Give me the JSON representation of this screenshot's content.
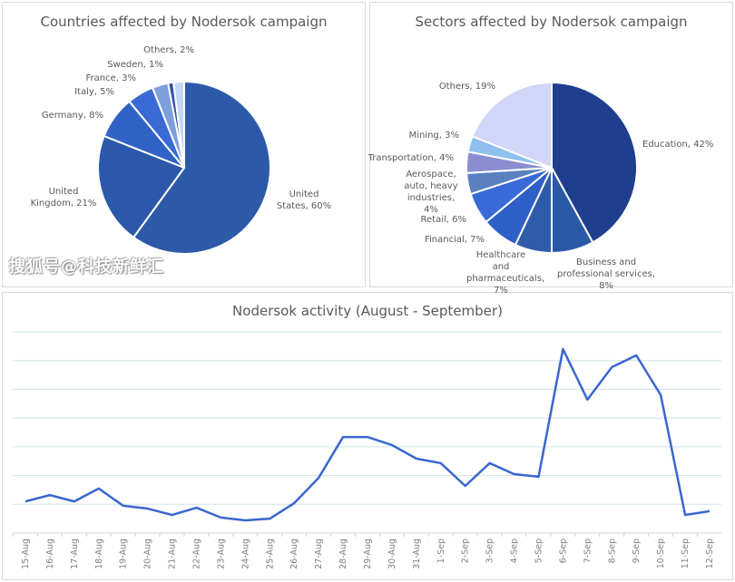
{
  "watermark": "搜狐号@科技新鲜汇",
  "chart_data": [
    {
      "type": "pie",
      "title": "Countries affected by Nodersok campaign",
      "slices": [
        {
          "label": "United States, 60%",
          "value": 60,
          "color": "#2c5aa8"
        },
        {
          "label": "United Kingdom, 21%",
          "value": 21,
          "color": "#2b58a9"
        },
        {
          "label": "Germany, 8%",
          "value": 8,
          "color": "#3163c6"
        },
        {
          "label": "Italy, 5%",
          "value": 5,
          "color": "#3a6ad6"
        },
        {
          "label": "France, 3%",
          "value": 3,
          "color": "#7e9fd8"
        },
        {
          "label": "Sweden, 1%",
          "value": 1,
          "color": "#3452a8"
        },
        {
          "label": "Others, 2%",
          "value": 2,
          "color": "#c4d8f6"
        }
      ]
    },
    {
      "type": "pie",
      "title": "Sectors affected by Nodersok campaign",
      "slices": [
        {
          "label": "Education, 42%",
          "value": 42,
          "color": "#1f3f8e"
        },
        {
          "label": "Business and professional services, 8%",
          "value": 8,
          "color": "#2a5aa6"
        },
        {
          "label": "Healthcare and pharmaceuticals, 7%",
          "value": 7,
          "color": "#2e5ca8"
        },
        {
          "label": "Financial, 7%",
          "value": 7,
          "color": "#2f60c8"
        },
        {
          "label": "Retail, 6%",
          "value": 6,
          "color": "#3a6ad8"
        },
        {
          "label": "Aerospace, auto, heavy industries, 4%",
          "value": 4,
          "color": "#5a80c0"
        },
        {
          "label": "Transportation, 4%",
          "value": 4,
          "color": "#8a8ed0"
        },
        {
          "label": "Mining, 3%",
          "value": 3,
          "color": "#8ec0f0"
        },
        {
          "label": "Others, 19%",
          "value": 19,
          "color": "#d2d6f8"
        }
      ]
    },
    {
      "type": "line",
      "title": "Nodersok activity (August - September)",
      "categories": [
        "15-Aug",
        "16-Aug",
        "17-Aug",
        "18-Aug",
        "19-Aug",
        "20-Aug",
        "21-Aug",
        "22-Aug",
        "23-Aug",
        "24-Aug",
        "25-Aug",
        "26-Aug",
        "27-Aug",
        "28-Aug",
        "29-Aug",
        "30-Aug",
        "31-Aug",
        "1-Sep",
        "2-Sep",
        "3-Sep",
        "4-Sep",
        "5-Sep",
        "6-Sep",
        "7-Sep",
        "8-Sep",
        "9-Sep",
        "10-Sep",
        "11-Sep",
        "12-Sep"
      ],
      "values": [
        1.1,
        1.32,
        1.1,
        1.55,
        0.95,
        0.85,
        0.63,
        0.88,
        0.54,
        0.44,
        0.5,
        1.04,
        1.92,
        3.34,
        3.34,
        3.06,
        2.59,
        2.43,
        1.64,
        2.43,
        2.05,
        1.96,
        6.4,
        4.64,
        5.77,
        6.18,
        4.8,
        0.63,
        0.76
      ],
      "ylim": [
        0,
        7
      ],
      "y_tick_labels_shown": false,
      "grid": true,
      "color": "#3a66d0"
    }
  ]
}
